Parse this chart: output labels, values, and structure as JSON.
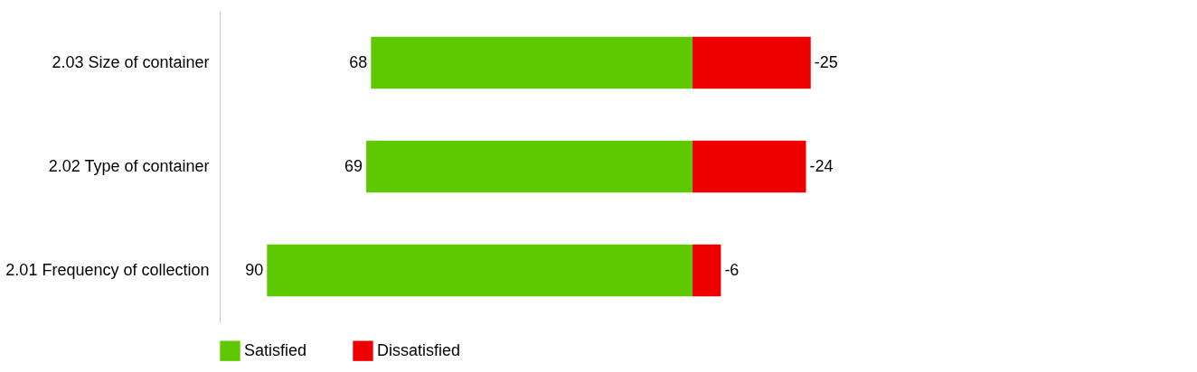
{
  "chart_data": {
    "type": "bar",
    "orientation": "horizontal",
    "stacked": true,
    "categories": [
      "2.03 Size of container",
      "2.02 Type of container",
      "2.01 Frequency of collection"
    ],
    "series": [
      {
        "name": "Satisfied",
        "color": "#5ec800",
        "values": [
          68,
          69,
          90
        ]
      },
      {
        "name": "Dissatisfied",
        "color": "#ee0000",
        "values": [
          -25,
          -24,
          -6
        ]
      }
    ],
    "xlim": [
      100,
      -100
    ],
    "data_labels": true,
    "tick_labels": "y",
    "grid": false,
    "legend": "bottom"
  }
}
